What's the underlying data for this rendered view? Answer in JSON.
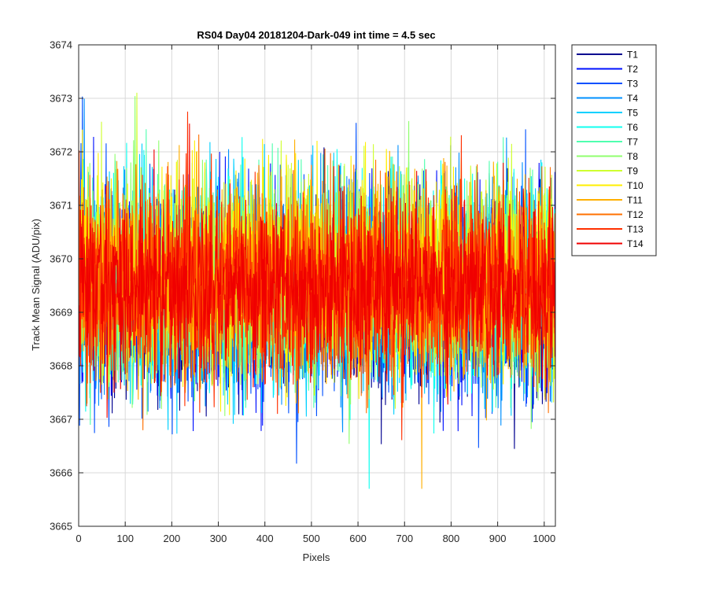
{
  "chart_data": {
    "type": "line",
    "title": "RS04 Day04 20181204-Dark-049 int time = 4.5 sec",
    "xlabel": "Pixels",
    "ylabel": "Track Mean Signal (ADU/pix)",
    "xlim": [
      0,
      1024
    ],
    "ylim": [
      3665,
      3674
    ],
    "x_ticks": [
      "0",
      "100",
      "200",
      "300",
      "400",
      "500",
      "600",
      "700",
      "800",
      "900",
      "1000"
    ],
    "y_ticks": [
      "3665",
      "3666",
      "3667",
      "3668",
      "3669",
      "3670",
      "3671",
      "3672",
      "3673",
      "3674"
    ],
    "grid": true,
    "legend_position": "outside-top-right",
    "x_range": [
      1,
      1024
    ],
    "series": [
      {
        "name": "T1",
        "color": "#00008F",
        "mean": 3669.3,
        "noise": 0.95
      },
      {
        "name": "T2",
        "color": "#0010FF",
        "mean": 3669.3,
        "noise": 0.95
      },
      {
        "name": "T3",
        "color": "#0050FF",
        "mean": 3669.4,
        "noise": 0.95
      },
      {
        "name": "T4",
        "color": "#0090FF",
        "mean": 3669.4,
        "noise": 0.95
      },
      {
        "name": "T5",
        "color": "#00D0FF",
        "mean": 3669.5,
        "noise": 0.95
      },
      {
        "name": "T6",
        "color": "#10FFEF",
        "mean": 3669.5,
        "noise": 0.95
      },
      {
        "name": "T7",
        "color": "#50FFAF",
        "mean": 3669.6,
        "noise": 0.9
      },
      {
        "name": "T8",
        "color": "#90FF6F",
        "mean": 3669.6,
        "noise": 0.9
      },
      {
        "name": "T9",
        "color": "#CFFF30",
        "mean": 3669.7,
        "noise": 0.9
      },
      {
        "name": "T10",
        "color": "#FFEF00",
        "mean": 3669.7,
        "noise": 0.9
      },
      {
        "name": "T11",
        "color": "#FFAF00",
        "mean": 3669.6,
        "noise": 0.9
      },
      {
        "name": "T12",
        "color": "#FF7000",
        "mean": 3669.5,
        "noise": 0.9
      },
      {
        "name": "T13",
        "color": "#FF3000",
        "mean": 3669.5,
        "noise": 0.85
      },
      {
        "name": "T14",
        "color": "#F00000",
        "mean": 3669.5,
        "noise": 0.8
      }
    ]
  }
}
